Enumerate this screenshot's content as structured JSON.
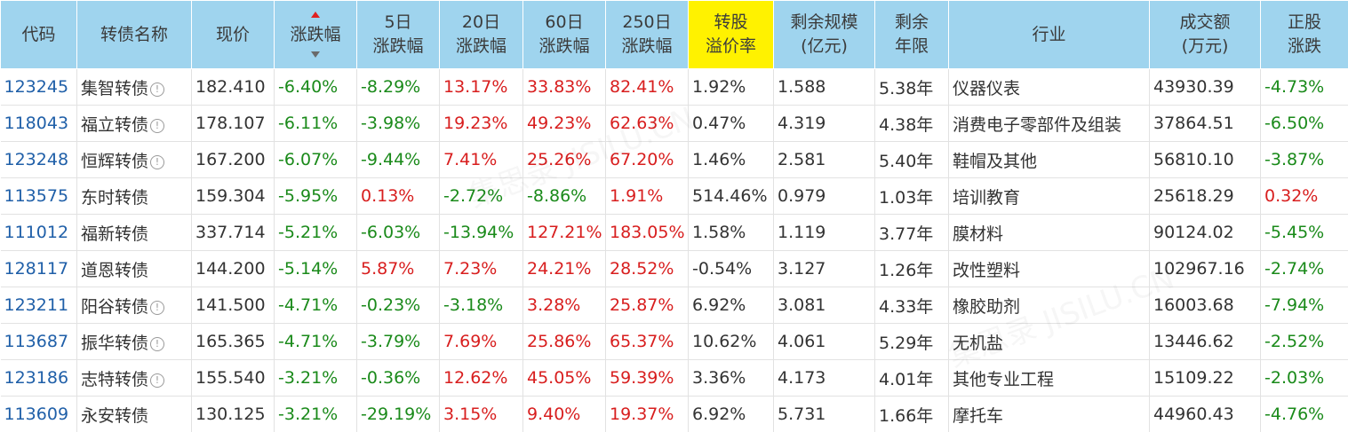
{
  "headers": [
    {
      "label": "代码"
    },
    {
      "label": "转债名称"
    },
    {
      "label": "现价"
    },
    {
      "label": "涨跌幅"
    },
    {
      "label": "5日涨跌幅"
    },
    {
      "label": "20日涨跌幅"
    },
    {
      "label": "60日涨跌幅"
    },
    {
      "label": "250日涨跌幅"
    },
    {
      "label": "转股溢价率"
    },
    {
      "label": "剩余规模(亿元)"
    },
    {
      "label": "剩余年限"
    },
    {
      "label": "行业"
    },
    {
      "label": "成交额(万元)"
    },
    {
      "label": "正股涨跌"
    }
  ],
  "header_display": {
    "code": [
      "代码"
    ],
    "name": [
      "转债名称"
    ],
    "price": [
      "现价"
    ],
    "change": [
      "涨跌幅"
    ],
    "d5": [
      "5日",
      "涨跌幅"
    ],
    "d20": [
      "20日",
      "涨跌幅"
    ],
    "d60": [
      "60日",
      "涨跌幅"
    ],
    "d250": [
      "250日",
      "涨跌幅"
    ],
    "premium": [
      "转股",
      "溢价率"
    ],
    "scale": [
      "剩余规模",
      "(亿元)"
    ],
    "years": [
      "剩余",
      "年限"
    ],
    "industry": [
      "行业"
    ],
    "turnover": [
      "成交额",
      "(万元)"
    ],
    "stock_change": [
      "正股",
      "涨跌"
    ]
  },
  "colors": {
    "header_bg": "#9fd4ee",
    "highlight_header_bg": "#fff200",
    "code_link": "#1f5fa8",
    "negative": "#1a8a1a",
    "positive": "#d81e1e"
  },
  "sort": {
    "column": "涨跌幅",
    "icon": "sort-arrows-icon"
  },
  "watermark": "集思录 JISILU.CN",
  "rows": [
    {
      "code": "123245",
      "name": "集智转债",
      "info": true,
      "price": "182.410",
      "change": "-6.40%",
      "d5": "-8.29%",
      "d20": "13.17%",
      "d60": "33.83%",
      "d250": "82.41%",
      "premium": "1.92%",
      "scale": "1.588",
      "years": "5.38年",
      "industry": "仪器仪表",
      "turnover": "43930.39",
      "stock_change": "-4.73%"
    },
    {
      "code": "118043",
      "name": "福立转债",
      "info": true,
      "price": "178.107",
      "change": "-6.11%",
      "d5": "-3.98%",
      "d20": "19.23%",
      "d60": "49.23%",
      "d250": "62.63%",
      "premium": "0.47%",
      "scale": "4.319",
      "years": "4.38年",
      "industry": "消费电子零部件及组装",
      "turnover": "37864.51",
      "stock_change": "-6.50%"
    },
    {
      "code": "123248",
      "name": "恒辉转债",
      "info": true,
      "price": "167.200",
      "change": "-6.07%",
      "d5": "-9.44%",
      "d20": "7.41%",
      "d60": "25.26%",
      "d250": "67.20%",
      "premium": "1.46%",
      "scale": "2.581",
      "years": "5.40年",
      "industry": "鞋帽及其他",
      "turnover": "56810.10",
      "stock_change": "-3.87%"
    },
    {
      "code": "113575",
      "name": "东时转债",
      "info": false,
      "price": "159.304",
      "change": "-5.95%",
      "d5": "0.13%",
      "d20": "-2.72%",
      "d60": "-8.86%",
      "d250": "1.91%",
      "premium": "514.46%",
      "scale": "0.979",
      "years": "1.03年",
      "industry": "培训教育",
      "turnover": "25618.29",
      "stock_change": "0.32%"
    },
    {
      "code": "111012",
      "name": "福新转债",
      "info": false,
      "price": "337.714",
      "change": "-5.21%",
      "d5": "-6.03%",
      "d20": "-13.94%",
      "d60": "127.21%",
      "d250": "183.05%",
      "premium": "1.58%",
      "scale": "1.119",
      "years": "3.77年",
      "industry": "膜材料",
      "turnover": "90124.02",
      "stock_change": "-5.45%"
    },
    {
      "code": "128117",
      "name": "道恩转债",
      "info": false,
      "price": "144.200",
      "change": "-5.14%",
      "d5": "5.87%",
      "d20": "7.23%",
      "d60": "24.21%",
      "d250": "28.52%",
      "premium": "-0.54%",
      "scale": "3.127",
      "years": "1.26年",
      "industry": "改性塑料",
      "turnover": "102967.16",
      "stock_change": "-2.74%"
    },
    {
      "code": "123211",
      "name": "阳谷转债",
      "info": true,
      "price": "141.500",
      "change": "-4.71%",
      "d5": "-0.23%",
      "d20": "-3.18%",
      "d60": "3.28%",
      "d250": "25.87%",
      "premium": "6.92%",
      "scale": "3.081",
      "years": "4.33年",
      "industry": "橡胶助剂",
      "turnover": "16003.68",
      "stock_change": "-7.94%"
    },
    {
      "code": "113687",
      "name": "振华转债",
      "info": true,
      "price": "165.365",
      "change": "-4.71%",
      "d5": "-3.79%",
      "d20": "7.69%",
      "d60": "25.86%",
      "d250": "65.37%",
      "premium": "10.62%",
      "scale": "4.061",
      "years": "5.29年",
      "industry": "无机盐",
      "turnover": "13446.62",
      "stock_change": "-2.52%"
    },
    {
      "code": "123186",
      "name": "志特转债",
      "info": true,
      "price": "155.540",
      "change": "-3.21%",
      "d5": "-0.36%",
      "d20": "12.62%",
      "d60": "45.05%",
      "d250": "59.39%",
      "premium": "3.36%",
      "scale": "4.173",
      "years": "4.01年",
      "industry": "其他专业工程",
      "turnover": "15109.22",
      "stock_change": "-2.03%"
    },
    {
      "code": "113609",
      "name": "永安转债",
      "info": false,
      "price": "130.125",
      "change": "-3.21%",
      "d5": "-29.19%",
      "d20": "3.15%",
      "d60": "9.40%",
      "d250": "19.37%",
      "premium": "6.92%",
      "scale": "5.731",
      "years": "1.66年",
      "industry": "摩托车",
      "turnover": "44960.43",
      "stock_change": "-4.76%"
    }
  ]
}
